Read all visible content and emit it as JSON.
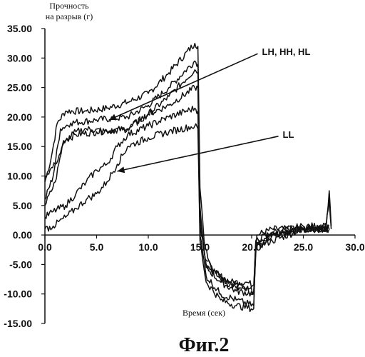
{
  "chart_data": {
    "type": "line",
    "ylabel_line1": "Прочность",
    "ylabel_line2": "на разрыв (г)",
    "xlabel": "Время (сек)",
    "caption": "Фиг.2",
    "xlim": [
      0,
      30
    ],
    "ylim": [
      -15,
      35
    ],
    "xticks": [
      "0.0",
      "5.0",
      "10.0",
      "15.0",
      "20.0",
      "25.0",
      "30.0"
    ],
    "yticks": [
      "35.00",
      "30.00",
      "25.00",
      "20.00",
      "15.00",
      "10.00",
      "5.00",
      "0.00",
      "-5.00",
      "-10.00",
      "-15.00"
    ],
    "annotations": [
      {
        "text": "LH, HH, HL",
        "x": 21.0,
        "y": 30.5,
        "arrow_to": [
          6.2,
          19.5
        ]
      },
      {
        "text": "LL",
        "x": 23.0,
        "y": 16.5,
        "arrow_to": [
          7.0,
          10.8
        ]
      }
    ],
    "series": [
      {
        "values": [
          [
            0,
            9
          ],
          [
            0.6,
            13
          ],
          [
            1.2,
            19
          ],
          [
            2,
            21
          ],
          [
            4,
            21
          ],
          [
            6,
            21.5
          ],
          [
            8,
            22.5
          ],
          [
            10,
            24
          ],
          [
            12,
            27.5
          ],
          [
            14.5,
            32.5
          ],
          [
            14.8,
            32
          ],
          [
            15,
            8
          ],
          [
            15.4,
            -1
          ],
          [
            16,
            -5
          ],
          [
            17,
            -7
          ],
          [
            18,
            -8
          ],
          [
            19.5,
            -9
          ],
          [
            20.2,
            -10
          ],
          [
            20.5,
            0
          ],
          [
            22,
            1
          ],
          [
            25,
            1
          ],
          [
            27.2,
            1
          ],
          [
            27.5,
            7.5
          ],
          [
            27.7,
            1.5
          ]
        ]
      },
      {
        "values": [
          [
            0,
            6
          ],
          [
            0.8,
            10
          ],
          [
            1.5,
            18
          ],
          [
            2.5,
            19
          ],
          [
            5,
            19.5
          ],
          [
            8,
            20
          ],
          [
            10,
            22
          ],
          [
            12,
            25
          ],
          [
            14.5,
            29.5
          ],
          [
            14.8,
            29
          ],
          [
            15,
            5
          ],
          [
            15.5,
            -4
          ],
          [
            16.5,
            -6.5
          ],
          [
            18,
            -8
          ],
          [
            19.5,
            -8
          ],
          [
            20.2,
            -8.5
          ],
          [
            20.4,
            -1
          ],
          [
            22,
            0
          ],
          [
            25,
            1
          ],
          [
            27.2,
            1.5
          ],
          [
            27.5,
            6
          ],
          [
            27.7,
            1
          ]
        ]
      },
      {
        "values": [
          [
            0,
            5
          ],
          [
            1,
            9
          ],
          [
            1.8,
            16
          ],
          [
            3,
            17
          ],
          [
            5,
            17.5
          ],
          [
            8,
            18
          ],
          [
            10,
            20.5
          ],
          [
            12,
            23.5
          ],
          [
            14.5,
            28
          ],
          [
            14.8,
            27.5
          ],
          [
            15,
            3
          ],
          [
            15.6,
            -5
          ],
          [
            17,
            -7.5
          ],
          [
            18.5,
            -9
          ],
          [
            20.2,
            -9.5
          ],
          [
            20.4,
            -2
          ],
          [
            22,
            -1
          ],
          [
            25,
            1
          ],
          [
            27.5,
            1
          ]
        ]
      },
      {
        "values": [
          [
            0,
            10
          ],
          [
            1,
            12
          ],
          [
            2,
            16
          ],
          [
            3,
            17.5
          ],
          [
            4,
            18
          ],
          [
            6,
            17.5
          ],
          [
            8,
            18
          ],
          [
            10,
            20.5
          ],
          [
            12,
            22
          ],
          [
            14.5,
            25
          ],
          [
            14.8,
            25
          ],
          [
            15,
            2
          ],
          [
            15.6,
            -5.5
          ],
          [
            17,
            -8
          ],
          [
            18.5,
            -9.5
          ],
          [
            20.2,
            -10
          ],
          [
            20.4,
            -1
          ],
          [
            22,
            0.5
          ],
          [
            25,
            1.5
          ],
          [
            27.5,
            1.5
          ]
        ]
      },
      {
        "values": [
          [
            0,
            3
          ],
          [
            0.8,
            4
          ],
          [
            2,
            5
          ],
          [
            3,
            7
          ],
          [
            4,
            9
          ],
          [
            5,
            11
          ],
          [
            6,
            12
          ],
          [
            7,
            15
          ],
          [
            8,
            17
          ],
          [
            10,
            18.5
          ],
          [
            12,
            20
          ],
          [
            14.5,
            21.5
          ],
          [
            14.8,
            21
          ],
          [
            15,
            0
          ],
          [
            15.6,
            -7
          ],
          [
            17,
            -10
          ],
          [
            18.5,
            -11
          ],
          [
            20.2,
            -12
          ],
          [
            20.4,
            -2
          ],
          [
            22,
            0
          ],
          [
            25,
            1
          ],
          [
            27.5,
            1
          ]
        ]
      },
      {
        "values": [
          [
            0,
            1
          ],
          [
            0.8,
            1.5
          ],
          [
            2,
            3
          ],
          [
            3,
            4.5
          ],
          [
            4,
            6
          ],
          [
            5,
            7
          ],
          [
            6,
            9
          ],
          [
            7,
            12
          ],
          [
            8,
            15
          ],
          [
            10,
            16.5
          ],
          [
            12,
            17.5
          ],
          [
            14.5,
            18.5
          ],
          [
            14.8,
            18
          ],
          [
            15,
            -1
          ],
          [
            15.6,
            -8
          ],
          [
            17,
            -11
          ],
          [
            18.5,
            -12
          ],
          [
            20.2,
            -12.5
          ],
          [
            20.4,
            -2
          ],
          [
            22,
            0
          ],
          [
            25,
            1
          ],
          [
            27.5,
            1
          ]
        ]
      }
    ]
  }
}
